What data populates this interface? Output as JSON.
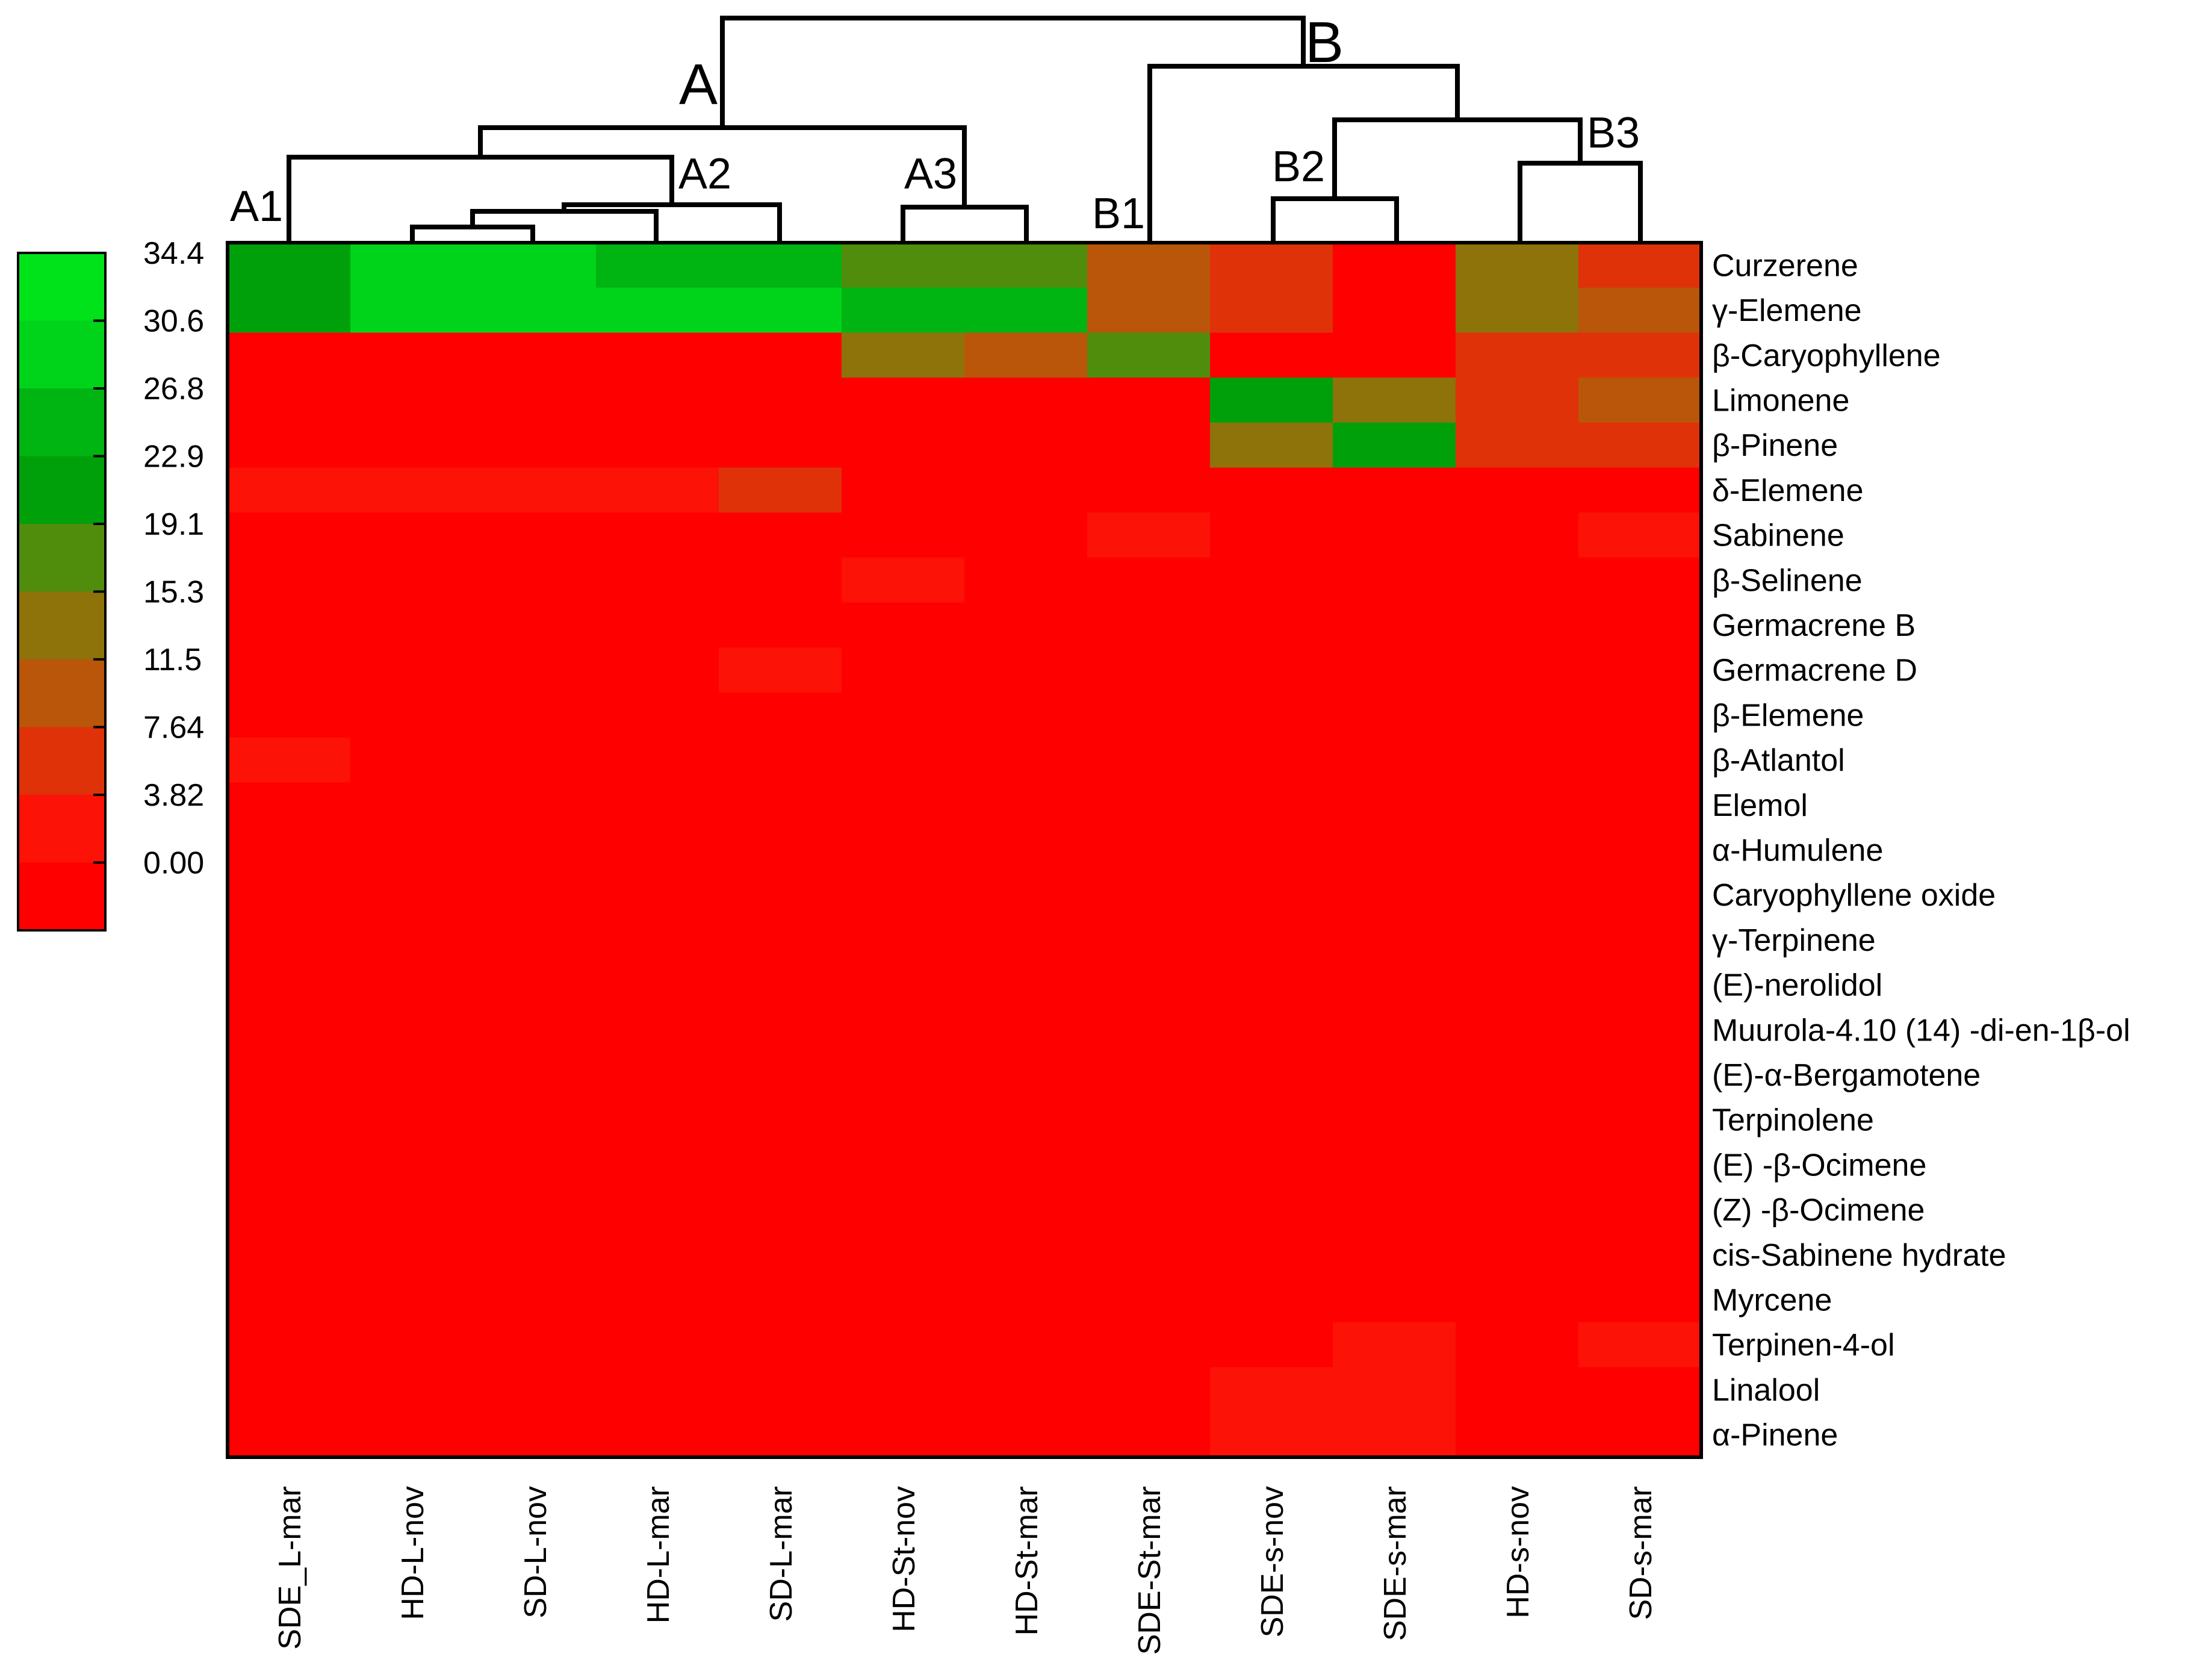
{
  "chart_data": {
    "type": "heatmap",
    "title": "",
    "columns": [
      "SDE_L-mar",
      "HD-L-nov",
      "SD-L-nov",
      "HD-L-mar",
      "SD-L-mar",
      "HD-St-nov",
      "HD-St-mar",
      "SDE-St-mar",
      "SDE-s-nov",
      "SDE-s-mar",
      "HD-s-nov",
      "SD-s-mar"
    ],
    "rows": [
      "Curzerene",
      "γ-Elemene",
      "β-Caryophyllene",
      "Limonene",
      "β-Pinene",
      "δ-Elemene",
      "Sabinene",
      "β-Selinene",
      "Germacrene B",
      "Germacrene D",
      "β-Elemene",
      "β-Atlantol",
      "Elemol",
      "α-Humulene",
      "Caryophyllene oxide",
      "γ-Terpinene",
      "(E)-nerolidol",
      "Muurola-4.10 (14) -di-en-1β-ol",
      "(E)-α-Bergamotene",
      "Terpinolene",
      "(E) -β-Ocimene",
      "(Z) -β-Ocimene",
      "cis-Sabinene hydrate",
      "Myrcene",
      "Terpinen-4-ol",
      "Linalool",
      "α-Pinene"
    ],
    "values": [
      [
        25.5,
        33.5,
        33.5,
        29.5,
        29.5,
        21.0,
        21.0,
        13.0,
        9.5,
        2.0,
        17.0,
        9.5
      ],
      [
        25.5,
        33.5,
        33.5,
        32.5,
        32.5,
        30.5,
        30.5,
        13.0,
        9.5,
        2.0,
        17.0,
        13.5
      ],
      [
        1.5,
        1.5,
        1.5,
        1.5,
        1.5,
        17.0,
        12.5,
        22.5,
        2.0,
        2.0,
        8.0,
        8.0
      ],
      [
        1.5,
        1.5,
        1.5,
        1.5,
        1.5,
        1.0,
        1.0,
        1.0,
        23.0,
        17.0,
        8.0,
        13.0
      ],
      [
        1.5,
        1.5,
        1.5,
        1.5,
        1.5,
        1.0,
        1.0,
        1.0,
        17.0,
        23.5,
        8.0,
        8.0
      ],
      [
        5.0,
        5.0,
        5.0,
        5.0,
        9.0,
        1.5,
        1.5,
        1.5,
        1.5,
        1.5,
        1.5,
        1.5
      ],
      [
        1.5,
        1.5,
        1.5,
        1.5,
        1.5,
        1.5,
        1.5,
        4.5,
        1.5,
        1.5,
        1.5,
        4.5
      ],
      [
        1.5,
        1.5,
        1.5,
        1.5,
        1.5,
        4.5,
        1.5,
        1.5,
        1.5,
        1.5,
        1.5,
        1.5
      ],
      [
        1.5,
        1.5,
        1.5,
        1.5,
        1.5,
        1.5,
        1.5,
        1.5,
        1.5,
        1.5,
        1.5,
        1.5
      ],
      [
        1.5,
        1.5,
        1.5,
        1.5,
        4.5,
        1.5,
        1.5,
        1.5,
        1.5,
        1.5,
        1.5,
        1.5
      ],
      [
        1.5,
        1.5,
        1.5,
        1.5,
        1.5,
        1.5,
        1.5,
        1.5,
        1.5,
        1.5,
        1.5,
        1.5
      ],
      [
        4.5,
        1.5,
        1.5,
        1.5,
        1.5,
        1.5,
        1.5,
        1.5,
        1.5,
        1.5,
        1.5,
        1.5
      ],
      [
        1.5,
        1.5,
        1.5,
        1.5,
        1.5,
        1.5,
        1.5,
        1.5,
        1.5,
        1.5,
        1.5,
        1.5
      ],
      [
        1.5,
        1.5,
        1.5,
        1.5,
        1.5,
        1.5,
        1.5,
        1.5,
        1.5,
        1.5,
        1.5,
        1.5
      ],
      [
        1.5,
        1.5,
        1.5,
        1.5,
        1.5,
        1.5,
        1.5,
        1.5,
        1.5,
        1.5,
        1.5,
        1.5
      ],
      [
        1.5,
        1.5,
        1.5,
        1.5,
        1.5,
        1.5,
        1.5,
        1.5,
        1.5,
        1.5,
        1.5,
        1.5
      ],
      [
        1.5,
        1.5,
        1.5,
        1.5,
        1.5,
        1.5,
        1.5,
        1.5,
        1.5,
        1.5,
        1.5,
        1.5
      ],
      [
        1.5,
        1.5,
        1.5,
        1.5,
        1.5,
        1.5,
        1.5,
        1.5,
        1.5,
        1.5,
        1.5,
        1.5
      ],
      [
        1.5,
        1.5,
        1.5,
        1.5,
        1.5,
        1.5,
        1.5,
        1.5,
        1.5,
        1.5,
        1.5,
        1.5
      ],
      [
        1.5,
        1.5,
        1.5,
        1.5,
        1.5,
        1.5,
        1.5,
        1.5,
        1.5,
        1.5,
        1.5,
        1.5
      ],
      [
        1.5,
        1.5,
        1.5,
        1.5,
        1.5,
        1.5,
        1.5,
        1.5,
        1.5,
        1.5,
        1.5,
        1.5
      ],
      [
        1.5,
        1.5,
        1.5,
        1.5,
        1.5,
        1.5,
        1.5,
        1.5,
        1.5,
        1.5,
        1.5,
        1.5
      ],
      [
        1.5,
        1.5,
        1.5,
        1.5,
        1.5,
        1.5,
        1.5,
        1.5,
        1.5,
        1.5,
        1.5,
        1.5
      ],
      [
        1.5,
        1.5,
        1.5,
        1.5,
        1.5,
        1.5,
        1.5,
        1.5,
        1.5,
        1.5,
        1.5,
        1.5
      ],
      [
        1.5,
        1.5,
        1.5,
        1.5,
        1.5,
        1.5,
        1.5,
        1.5,
        1.5,
        4.5,
        1.5,
        4.5
      ],
      [
        1.5,
        1.5,
        1.5,
        1.5,
        1.5,
        1.5,
        1.5,
        1.5,
        4.5,
        4.5,
        1.5,
        1.5
      ],
      [
        1.5,
        1.5,
        1.5,
        1.5,
        1.5,
        1.5,
        1.5,
        1.5,
        4.5,
        4.5,
        1.5,
        1.5
      ]
    ],
    "color_scale": {
      "ticks": [
        "34.4",
        "30.6",
        "26.8",
        "22.9",
        "19.1",
        "15.3",
        "11.5",
        "7.64",
        "3.82",
        "0.00"
      ],
      "range": [
        0,
        34.4
      ],
      "bins": [
        {
          "min": 0.0,
          "max": 3.82,
          "color": "#ff0000"
        },
        {
          "min": 3.82,
          "max": 7.64,
          "color": "#fc1206"
        },
        {
          "min": 7.64,
          "max": 11.5,
          "color": "#df3209"
        },
        {
          "min": 11.5,
          "max": 15.3,
          "color": "#b9560a"
        },
        {
          "min": 15.3,
          "max": 19.1,
          "color": "#8d730a"
        },
        {
          "min": 19.1,
          "max": 22.9,
          "color": "#508d0c"
        },
        {
          "min": 22.9,
          "max": 26.8,
          "color": "#00a00a"
        },
        {
          "min": 26.8,
          "max": 30.6,
          "color": "#00b412"
        },
        {
          "min": 30.6,
          "max": 34.4,
          "color": "#00d41a"
        },
        {
          "min": 34.4,
          "max": 38.2,
          "color": "#00e31a"
        }
      ]
    },
    "dendrogram": {
      "clusters": [
        "A",
        "B",
        "A1",
        "A2",
        "A3",
        "B1",
        "B2",
        "B3"
      ],
      "merges": [
        {
          "left": "SD-L-nov",
          "right": "HD-L-nov",
          "height": 0.6
        },
        {
          "left": "HD-L-mar",
          "right": "HD-L-nov+SD-L-nov",
          "height": 1.2
        },
        {
          "left": "SD-L-mar",
          "right": "HD-L-nov+SD-L-nov+HD-L-mar",
          "height": 1.4,
          "label": "A2"
        },
        {
          "left": "HD-St-nov",
          "right": "HD-St-mar",
          "height": 1.6,
          "label": "A3"
        },
        {
          "left": "SDE-s-nov",
          "right": "SDE-s-mar",
          "height": 1.9,
          "label": "B2"
        },
        {
          "left": "HD-s-nov",
          "right": "SD-s-mar",
          "height": 3.6,
          "label": "B3"
        },
        {
          "left": "SDE_L-mar",
          "right": "A2",
          "height": 4.6,
          "label": "A1"
        },
        {
          "left": "B2",
          "right": "B3",
          "height": 5.7
        },
        {
          "left": "A1+A2",
          "right": "A3",
          "height": 5.9
        },
        {
          "left": "SDE-St-mar",
          "right": "B2+B3",
          "height": 7.9,
          "label": "B1"
        },
        {
          "left": "A",
          "right": "B",
          "height": 10.0
        }
      ]
    }
  },
  "colors": {
    "frame": "#000000",
    "background": "#ffffff"
  }
}
